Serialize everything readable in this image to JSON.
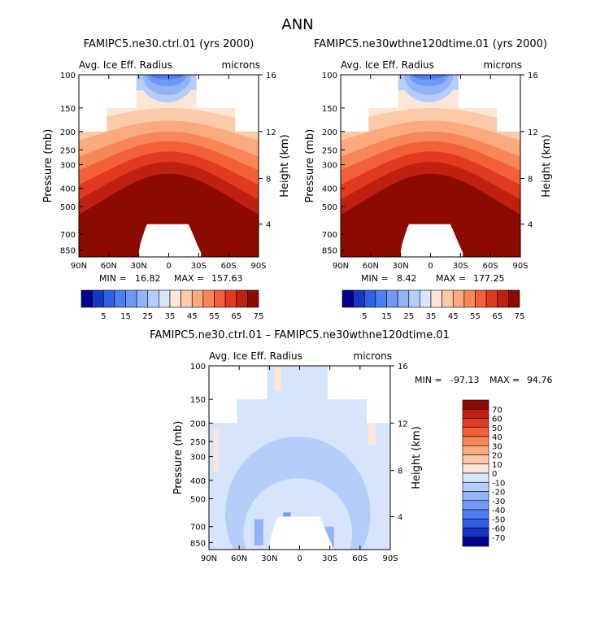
{
  "figure_title": "ANN",
  "chart_data": [
    {
      "type": "heatmap",
      "title": "FAMIPC5.ne30.ctrl.01 (yrs 2000)",
      "subtitle_left": "Avg. Ice Eff. Radius",
      "subtitle_right": "microns",
      "xlabel": "",
      "ylabel": "Pressure (mb)",
      "ylabel_right": "Height (km)",
      "x_ticks": [
        "90N",
        "60N",
        "30N",
        "0",
        "30S",
        "60S",
        "90S"
      ],
      "y_ticks": [
        "100",
        "150",
        "200",
        "250",
        "300",
        "400",
        "500",
        "700",
        "850"
      ],
      "height_ticks": [
        "16",
        "12",
        "8",
        "4"
      ],
      "min_label": "MIN =",
      "min_value": "16.82",
      "max_label": "MAX =",
      "max_value": "157.63",
      "colorbar_labels": [
        "5",
        "15",
        "25",
        "35",
        "45",
        "55",
        "65",
        "75"
      ],
      "colorbar_colors": [
        "#00008c",
        "#1438c4",
        "#2f5fe6",
        "#4e7ff0",
        "#6f99f4",
        "#92b4f7",
        "#b4cdf9",
        "#d6e5fb",
        "#fde6d8",
        "#fccaa8",
        "#fbaa80",
        "#f88658",
        "#f2603a",
        "#e03b20",
        "#bf200f",
        "#8c0a00"
      ]
    },
    {
      "type": "heatmap",
      "title": "FAMIPC5.ne30wthne120dtime.01 (yrs 2000)",
      "subtitle_left": "Avg. Ice Eff. Radius",
      "subtitle_right": "microns",
      "xlabel": "",
      "ylabel": "Pressure (mb)",
      "ylabel_right": "Height (km)",
      "x_ticks": [
        "90N",
        "60N",
        "30N",
        "0",
        "30S",
        "60S",
        "90S"
      ],
      "y_ticks": [
        "100",
        "150",
        "200",
        "250",
        "300",
        "400",
        "500",
        "700",
        "850"
      ],
      "height_ticks": [
        "16",
        "12",
        "8",
        "4"
      ],
      "min_label": "MIN =",
      "min_value": "8.42",
      "max_label": "MAX =",
      "max_value": "177.25",
      "colorbar_labels": [
        "5",
        "15",
        "25",
        "35",
        "45",
        "55",
        "65",
        "75"
      ],
      "colorbar_colors": [
        "#00008c",
        "#1438c4",
        "#2f5fe6",
        "#4e7ff0",
        "#6f99f4",
        "#92b4f7",
        "#b4cdf9",
        "#d6e5fb",
        "#fde6d8",
        "#fccaa8",
        "#fbaa80",
        "#f88658",
        "#f2603a",
        "#e03b20",
        "#bf200f",
        "#8c0a00"
      ]
    },
    {
      "type": "heatmap",
      "title": "FAMIPC5.ne30.ctrl.01 – FAMIPC5.ne30wthne120dtime.01",
      "subtitle_left": "Avg. Ice Eff. Radius",
      "subtitle_right": "microns",
      "xlabel": "",
      "ylabel": "Pressure (mb)",
      "ylabel_right": "Height (km)",
      "x_ticks": [
        "90N",
        "60N",
        "30N",
        "0",
        "30S",
        "60S",
        "90S"
      ],
      "y_ticks": [
        "100",
        "150",
        "200",
        "250",
        "300",
        "400",
        "500",
        "700",
        "850"
      ],
      "height_ticks": [
        "16",
        "12",
        "8",
        "4"
      ],
      "min_label": "MIN =",
      "min_value": "-97.13",
      "max_label": "MAX =",
      "max_value": "94.76",
      "colorbar_labels": [
        "70",
        "60",
        "50",
        "40",
        "30",
        "20",
        "10",
        "0",
        "-10",
        "-20",
        "-30",
        "-40",
        "-50",
        "-60",
        "-70"
      ],
      "colorbar_colors": [
        "#8c0a00",
        "#bf200f",
        "#e03b20",
        "#f2603a",
        "#f88658",
        "#fbaa80",
        "#fccaa8",
        "#fde6d8",
        "#d6e5fb",
        "#b4cdf9",
        "#92b4f7",
        "#6f99f4",
        "#4e7ff0",
        "#2f5fe6",
        "#1438c4",
        "#00008c"
      ]
    }
  ]
}
